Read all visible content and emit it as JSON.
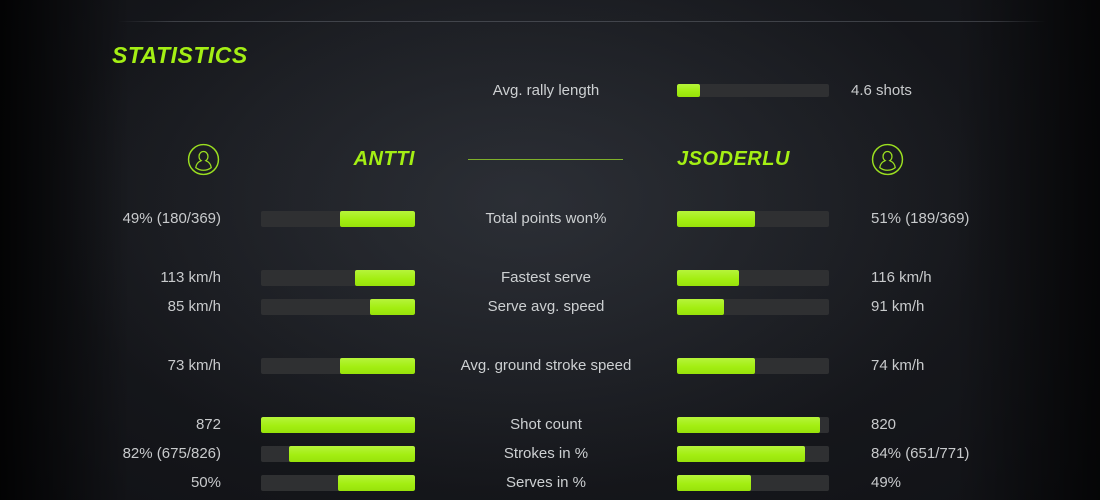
{
  "title": "STATISTICS",
  "colors": {
    "accent": "#a4ef14",
    "bar_track": "#2f3032",
    "text_light": "#c8cacc",
    "background": "#14161a"
  },
  "rally": {
    "label": "Avg. rally length",
    "value": "4.6 shots",
    "fill_pct": 15
  },
  "players": {
    "left": {
      "name": "ANTTI",
      "icon": "person-circle-icon"
    },
    "right": {
      "name": "JSODERLU",
      "icon": "person-circle-icon"
    }
  },
  "stats": [
    {
      "label": "Total points won%",
      "new_group": true,
      "left": {
        "value": "49% (180/369)",
        "fill_pct": 49
      },
      "right": {
        "value": "51% (189/369)",
        "fill_pct": 51
      }
    },
    {
      "label": "Fastest serve",
      "new_group": true,
      "left": {
        "value": "113 km/h",
        "fill_pct": 39
      },
      "right": {
        "value": "116 km/h",
        "fill_pct": 41
      }
    },
    {
      "label": "Serve avg. speed",
      "new_group": false,
      "left": {
        "value": "85 km/h",
        "fill_pct": 29
      },
      "right": {
        "value": "91 km/h",
        "fill_pct": 31
      }
    },
    {
      "label": "Avg. ground stroke speed",
      "new_group": true,
      "left": {
        "value": "73 km/h",
        "fill_pct": 49
      },
      "right": {
        "value": "74 km/h",
        "fill_pct": 51
      }
    },
    {
      "label": "Shot count",
      "new_group": true,
      "left": {
        "value": "872",
        "fill_pct": 100
      },
      "right": {
        "value": "820",
        "fill_pct": 94
      }
    },
    {
      "label": "Strokes in %",
      "new_group": false,
      "left": {
        "value": "82% (675/826)",
        "fill_pct": 82
      },
      "right": {
        "value": "84% (651/771)",
        "fill_pct": 84
      }
    },
    {
      "label": "Serves in %",
      "new_group": false,
      "left": {
        "value": "50%",
        "fill_pct": 50
      },
      "right": {
        "value": "49%",
        "fill_pct": 49
      }
    }
  ]
}
